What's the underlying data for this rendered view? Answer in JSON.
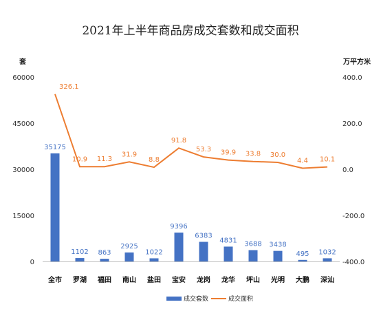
{
  "chart_data": {
    "type": "bar",
    "title": "2021年上半年商品房成交套数和成交面积",
    "categories": [
      "全市",
      "罗湖",
      "福田",
      "南山",
      "盐田",
      "宝安",
      "龙岗",
      "龙华",
      "坪山",
      "光明",
      "大鹏",
      "深汕"
    ],
    "series": [
      {
        "name": "成交套数",
        "type": "bar",
        "axis": "left",
        "color": "#4472C4",
        "values": [
          35175,
          1102,
          863,
          2925,
          1022,
          9396,
          6383,
          4831,
          3688,
          3438,
          495,
          1032
        ],
        "labels": [
          "35175",
          "1102",
          "863",
          "2925",
          "1022",
          "9396",
          "6383",
          "4831",
          "3688",
          "3438",
          "495",
          "1032"
        ]
      },
      {
        "name": "成交面积",
        "type": "line",
        "axis": "right",
        "color": "#ED7D31",
        "values": [
          326.1,
          10.9,
          11.3,
          31.9,
          8.8,
          91.8,
          53.3,
          39.9,
          33.8,
          30.0,
          4.4,
          10.1
        ],
        "labels": [
          "326.1",
          "10.9",
          "11.3",
          "31.9",
          "8.8",
          "91.8",
          "53.3",
          "39.9",
          "33.8",
          "30.0",
          "4.4",
          "10.1"
        ]
      }
    ],
    "y_left": {
      "unit": "套",
      "min": 0,
      "max": 60000,
      "ticks": [
        0,
        15000,
        30000,
        45000,
        60000
      ],
      "tick_labels": [
        "0",
        "15000",
        "30000",
        "45000",
        "60000"
      ]
    },
    "y_right": {
      "unit": "万平方米",
      "min": -400,
      "max": 400,
      "ticks": [
        -400,
        -200,
        0,
        200,
        400
      ],
      "tick_labels": [
        "-400.0",
        "-200.0",
        "0.0",
        "200.0",
        "400.0"
      ]
    },
    "grid": false,
    "legend_position": "bottom-center"
  }
}
